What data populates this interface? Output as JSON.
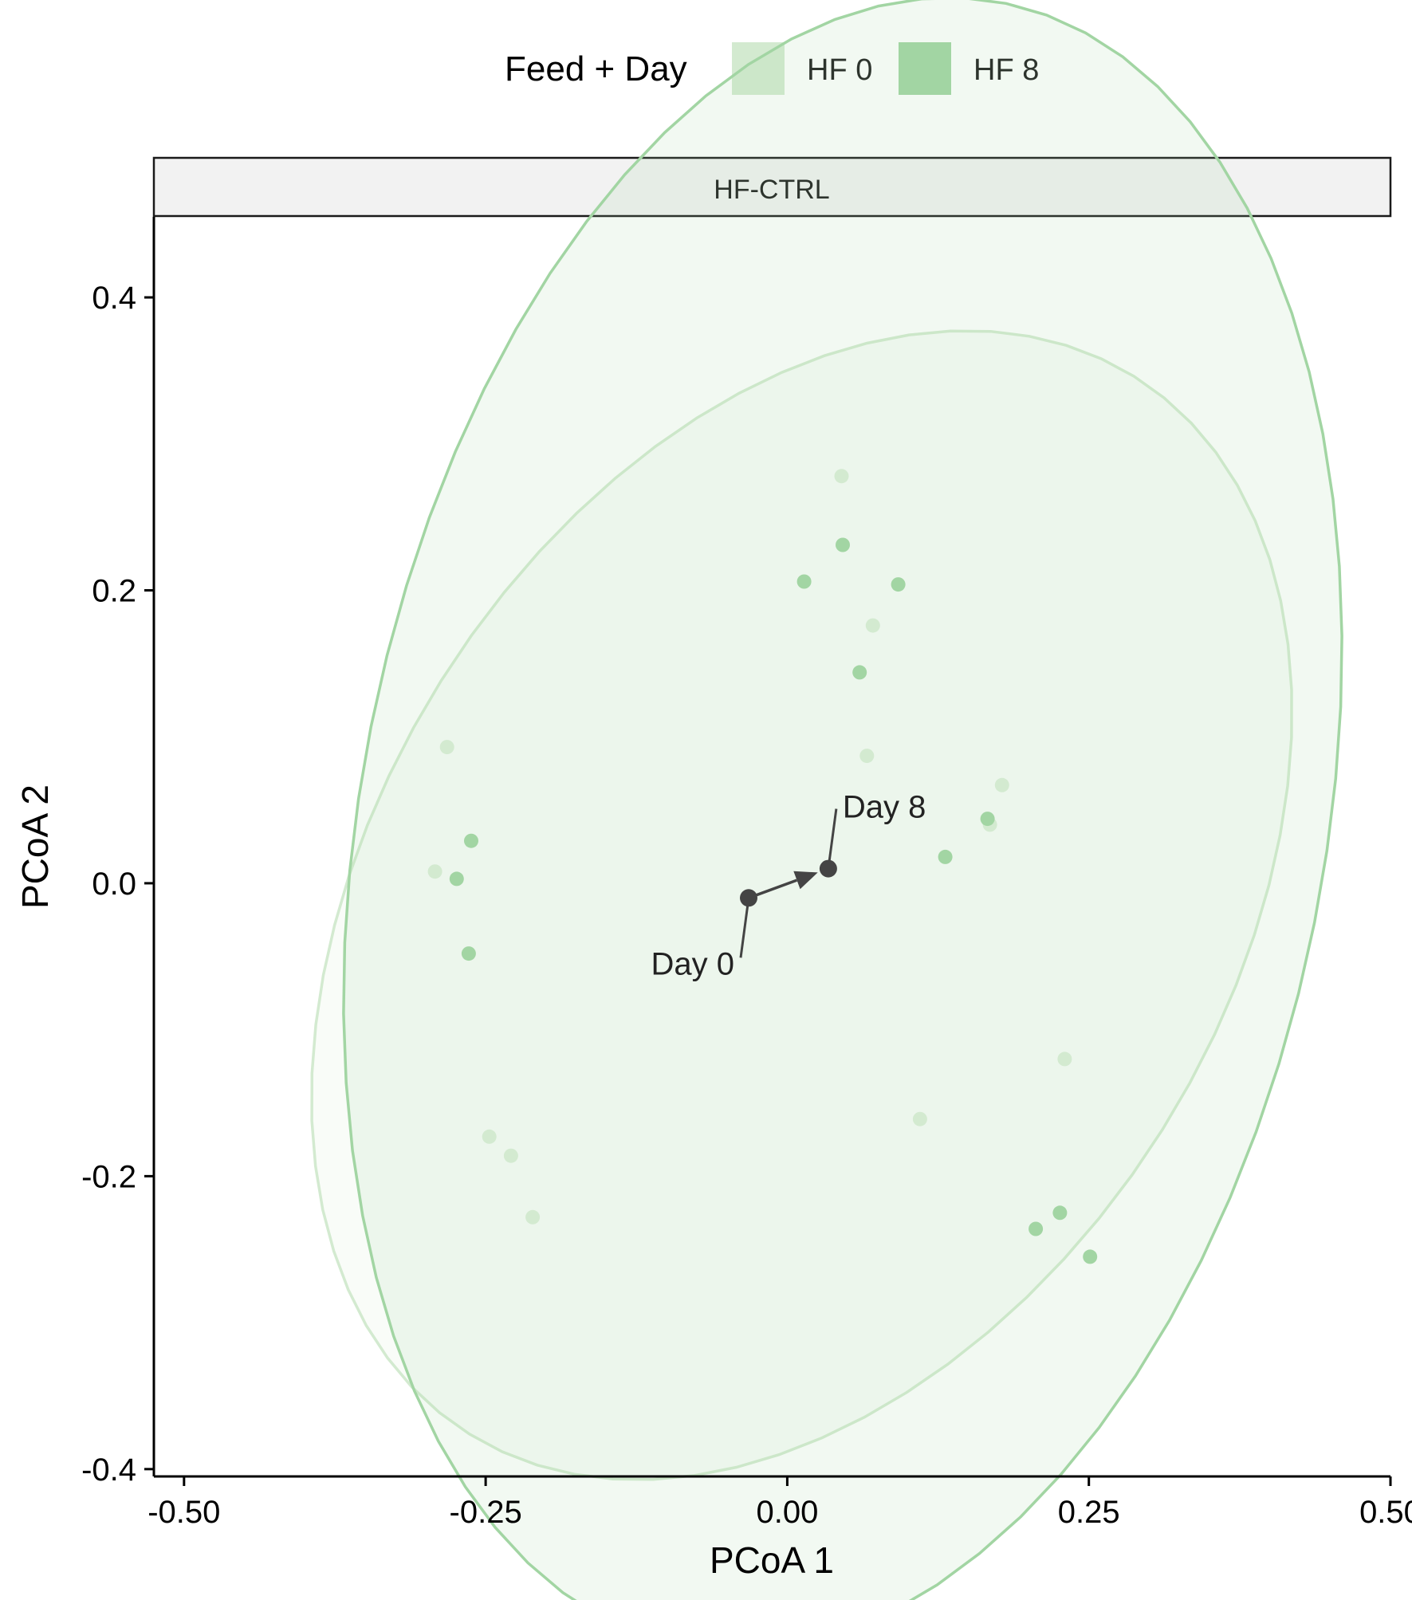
{
  "chart_data": {
    "type": "scatter",
    "legend": {
      "title": "Feed + Day",
      "placement": "top",
      "entries": [
        {
          "label": "HF 0",
          "color": "#d3ead0"
        },
        {
          "label": "HF 8",
          "color": "#a2d5a3"
        }
      ]
    },
    "facet_label": "HF-CTRL",
    "xlabel": "PCoA 1",
    "ylabel": "PCoA 2",
    "xlim": [
      -0.525,
      0.5
    ],
    "ylim": [
      -0.405,
      0.455
    ],
    "x_ticks": [
      -0.5,
      -0.25,
      0.0,
      0.25,
      0.5
    ],
    "x_tick_labels": [
      "-0.50",
      "-0.25",
      "0.00",
      "0.25",
      "0.50"
    ],
    "y_ticks": [
      -0.4,
      -0.2,
      0.0,
      0.2,
      0.4
    ],
    "y_tick_labels": [
      "-0.4",
      "-0.2",
      "0.0",
      "0.2",
      "0.4"
    ],
    "grid": false,
    "series": [
      {
        "name": "HF 0",
        "color": "#d3ead0",
        "points": [
          [
            0.045,
            0.278
          ],
          [
            0.071,
            0.176
          ],
          [
            0.066,
            0.087
          ],
          [
            0.178,
            0.067
          ],
          [
            0.168,
            0.04
          ],
          [
            -0.282,
            0.093
          ],
          [
            -0.292,
            0.008
          ],
          [
            -0.247,
            -0.173
          ],
          [
            -0.229,
            -0.186
          ],
          [
            -0.211,
            -0.228
          ],
          [
            0.11,
            -0.161
          ],
          [
            0.23,
            -0.12
          ]
        ],
        "ellipse": {
          "cx": 0.012,
          "cy": -0.015,
          "rx": 0.325,
          "ry": 0.462,
          "angle_deg": -48
        }
      },
      {
        "name": "HF 8",
        "color": "#a2d5a3",
        "points": [
          [
            0.046,
            0.231
          ],
          [
            0.014,
            0.206
          ],
          [
            0.092,
            0.204
          ],
          [
            0.06,
            0.144
          ],
          [
            0.166,
            0.044
          ],
          [
            0.131,
            0.018
          ],
          [
            -0.262,
            0.029
          ],
          [
            -0.274,
            0.003
          ],
          [
            -0.264,
            -0.048
          ],
          [
            0.206,
            -0.236
          ],
          [
            0.226,
            -0.225
          ],
          [
            0.251,
            -0.255
          ]
        ],
        "ellipse": {
          "cx": 0.046,
          "cy": 0.04,
          "rx": 0.395,
          "ry": 0.578,
          "angle_deg": -17
        }
      }
    ],
    "centroids": [
      {
        "label": "Day 0",
        "x": -0.032,
        "y": -0.01
      },
      {
        "label": "Day 8",
        "x": 0.034,
        "y": 0.01
      }
    ]
  }
}
